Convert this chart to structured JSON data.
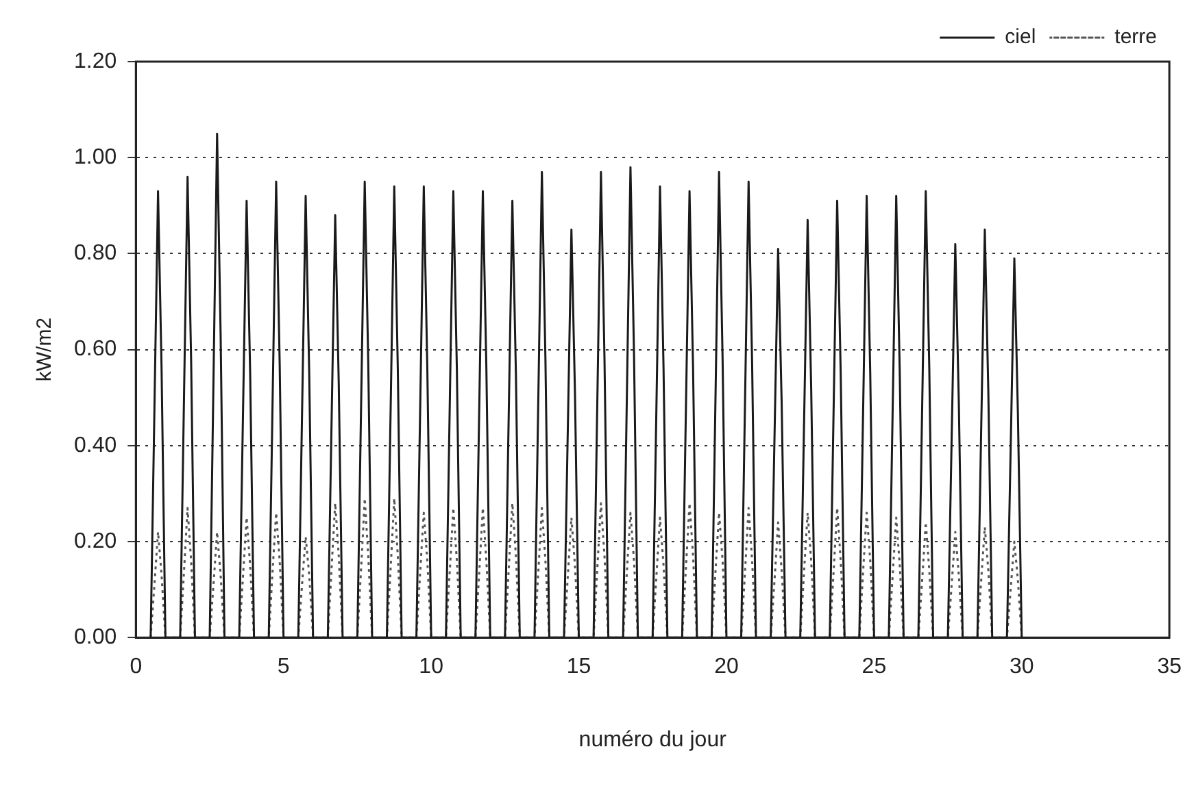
{
  "chart_data": {
    "type": "line",
    "xlabel": "numéro du jour",
    "ylabel": "kW/m2",
    "x": [
      0.5,
      0.65,
      0.75,
      0.87,
      1,
      1.5,
      1.65,
      1.75,
      1.87,
      2,
      2.5,
      2.65,
      2.75,
      2.87,
      3,
      3.5,
      3.65,
      3.75,
      3.87,
      4,
      4.5,
      4.65,
      4.75,
      4.87,
      5,
      5.5,
      5.65,
      5.75,
      5.87,
      6,
      6.5,
      6.65,
      6.75,
      6.87,
      7,
      7.5,
      7.65,
      7.75,
      7.87,
      8,
      8.5,
      8.65,
      8.75,
      8.87,
      9,
      9.5,
      9.65,
      9.75,
      9.87,
      10,
      10.5,
      10.65,
      10.75,
      10.87,
      11,
      11.5,
      11.65,
      11.75,
      11.87,
      12,
      12.5,
      12.65,
      12.75,
      12.87,
      13,
      13.5,
      13.65,
      13.75,
      13.87,
      14,
      14.5,
      14.65,
      14.75,
      14.87,
      15,
      15.5,
      15.65,
      15.75,
      15.87,
      16,
      16.5,
      16.65,
      16.75,
      16.87,
      17,
      17.5,
      17.65,
      17.75,
      17.87,
      18,
      18.5,
      18.65,
      18.75,
      18.87,
      19,
      19.5,
      19.65,
      19.75,
      19.87,
      20,
      20.5,
      20.65,
      20.75,
      20.87,
      21,
      21.5,
      21.65,
      21.75,
      21.87,
      22,
      22.5,
      22.65,
      22.75,
      22.87,
      23,
      23.5,
      23.65,
      23.75,
      23.87,
      24,
      24.5,
      24.65,
      24.75,
      24.87,
      25,
      25.5,
      25.65,
      25.75,
      25.87,
      26,
      26.5,
      26.65,
      26.75,
      26.87,
      27,
      27.5,
      27.65,
      27.75,
      27.87,
      28,
      28.5,
      28.65,
      28.75,
      28.87,
      29,
      29.5,
      29.65,
      29.75,
      29.87,
      30
    ],
    "series": [
      {
        "name": "ciel",
        "color": "#1a1a1a",
        "line_style": "solid",
        "values": [
          0,
          0.56,
          0.93,
          0.56,
          0,
          0,
          0.58,
          0.96,
          0.58,
          0,
          0,
          0.63,
          1.05,
          0.63,
          0,
          0,
          0.55,
          0.91,
          0.55,
          0,
          0,
          0.57,
          0.95,
          0.57,
          0,
          0,
          0.55,
          0.92,
          0.55,
          0,
          0,
          0.53,
          0.88,
          0.53,
          0,
          0,
          0.57,
          0.95,
          0.57,
          0,
          0,
          0.56,
          0.94,
          0.56,
          0,
          0,
          0.56,
          0.94,
          0.56,
          0,
          0,
          0.56,
          0.93,
          0.56,
          0,
          0,
          0.56,
          0.93,
          0.56,
          0,
          0,
          0.55,
          0.91,
          0.55,
          0,
          0,
          0.58,
          0.97,
          0.58,
          0,
          0,
          0.51,
          0.85,
          0.51,
          0,
          0,
          0.58,
          0.97,
          0.58,
          0,
          0,
          0.59,
          0.98,
          0.59,
          0,
          0,
          0.56,
          0.94,
          0.56,
          0,
          0,
          0.56,
          0.93,
          0.56,
          0,
          0,
          0.58,
          0.97,
          0.58,
          0,
          0,
          0.57,
          0.95,
          0.57,
          0,
          0,
          0.49,
          0.81,
          0.49,
          0,
          0,
          0.52,
          0.87,
          0.52,
          0,
          0,
          0.55,
          0.91,
          0.55,
          0,
          0,
          0.55,
          0.92,
          0.55,
          0,
          0,
          0.55,
          0.92,
          0.55,
          0,
          0,
          0.56,
          0.93,
          0.56,
          0,
          0,
          0.49,
          0.82,
          0.49,
          0,
          0,
          0.51,
          0.85,
          0.51,
          0,
          0,
          0.47,
          0.79,
          0.47,
          0
        ]
      },
      {
        "name": "terre",
        "color": "#555555",
        "line_style": "dotted",
        "values": [
          0,
          0.13,
          0.22,
          0.13,
          0,
          0,
          0.16,
          0.27,
          0.16,
          0,
          0,
          0.13,
          0.22,
          0.13,
          0,
          0,
          0.15,
          0.25,
          0.15,
          0,
          0,
          0.16,
          0.26,
          0.16,
          0,
          0,
          0.13,
          0.21,
          0.13,
          0,
          0,
          0.17,
          0.28,
          0.17,
          0,
          0,
          0.17,
          0.29,
          0.17,
          0,
          0,
          0.17,
          0.29,
          0.17,
          0,
          0,
          0.16,
          0.26,
          0.16,
          0,
          0,
          0.16,
          0.27,
          0.16,
          0,
          0,
          0.16,
          0.27,
          0.16,
          0,
          0,
          0.17,
          0.28,
          0.17,
          0,
          0,
          0.16,
          0.27,
          0.16,
          0,
          0,
          0.15,
          0.25,
          0.15,
          0,
          0,
          0.17,
          0.28,
          0.17,
          0,
          0,
          0.16,
          0.26,
          0.16,
          0,
          0,
          0.15,
          0.25,
          0.15,
          0,
          0,
          0.17,
          0.28,
          0.17,
          0,
          0,
          0.16,
          0.26,
          0.16,
          0,
          0,
          0.16,
          0.27,
          0.16,
          0,
          0,
          0.14,
          0.24,
          0.14,
          0,
          0,
          0.16,
          0.26,
          0.16,
          0,
          0,
          0.16,
          0.27,
          0.16,
          0,
          0,
          0.16,
          0.26,
          0.16,
          0,
          0,
          0.15,
          0.25,
          0.15,
          0,
          0,
          0.14,
          0.24,
          0.14,
          0,
          0,
          0.13,
          0.22,
          0.13,
          0,
          0,
          0.14,
          0.23,
          0.14,
          0,
          0,
          0.12,
          0.2,
          0.12,
          0
        ]
      }
    ],
    "xlim": [
      0,
      35
    ],
    "xticks": [
      0,
      5,
      10,
      15,
      20,
      25,
      30,
      35
    ],
    "ylim": [
      0,
      1.2
    ],
    "yticks": [
      {
        "value": 0,
        "label": "0.00"
      },
      {
        "value": 0.2,
        "label": "0.20"
      },
      {
        "value": 0.4,
        "label": "0.40"
      },
      {
        "value": 0.6,
        "label": "0.60"
      },
      {
        "value": 0.8,
        "label": "0.80"
      },
      {
        "value": 1,
        "label": "1.00"
      },
      {
        "value": 1.2,
        "label": "1.20"
      }
    ],
    "grid": "y",
    "legend": "top right",
    "marker": "none"
  }
}
